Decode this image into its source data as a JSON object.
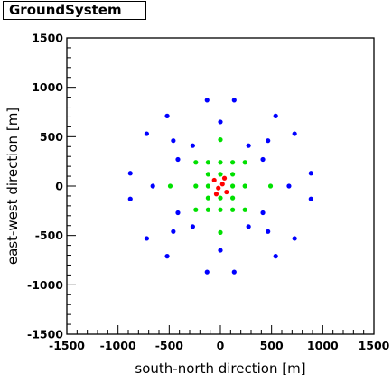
{
  "window": {
    "title": "GroundSystem"
  },
  "chart_data": {
    "type": "scatter",
    "title": "GroundSystem",
    "xlabel": "south-north direction [m]",
    "ylabel": "east-west direction [m]",
    "xlim": [
      -1500,
      1500
    ],
    "ylim": [
      -1500,
      1500
    ],
    "x_ticks": [
      -1500,
      -1000,
      -500,
      0,
      500,
      1000,
      1500
    ],
    "y_ticks": [
      -1500,
      -1000,
      -500,
      0,
      500,
      1000,
      1500
    ],
    "grid": false,
    "series": [
      {
        "color": "#0000ff",
        "points": [
          [
            -130,
            870
          ],
          [
            135,
            870
          ],
          [
            -520,
            710
          ],
          [
            540,
            710
          ],
          [
            -720,
            530
          ],
          [
            725,
            530
          ],
          [
            -460,
            460
          ],
          [
            0,
            650
          ],
          [
            465,
            460
          ],
          [
            -270,
            410
          ],
          [
            275,
            410
          ],
          [
            -415,
            270
          ],
          [
            415,
            270
          ],
          [
            -880,
            130
          ],
          [
            885,
            130
          ],
          [
            -660,
            0
          ],
          [
            670,
            0
          ],
          [
            -880,
            -130
          ],
          [
            885,
            -130
          ],
          [
            -415,
            -270
          ],
          [
            415,
            -270
          ],
          [
            -270,
            -410
          ],
          [
            275,
            -410
          ],
          [
            -460,
            -460
          ],
          [
            0,
            -650
          ],
          [
            465,
            -460
          ],
          [
            -720,
            -530
          ],
          [
            725,
            -530
          ],
          [
            -520,
            -710
          ],
          [
            540,
            -710
          ],
          [
            -130,
            -870
          ],
          [
            135,
            -870
          ]
        ]
      },
      {
        "color": "#00e000",
        "points": [
          [
            0,
            470
          ],
          [
            -240,
            240
          ],
          [
            -120,
            240
          ],
          [
            0,
            240
          ],
          [
            120,
            240
          ],
          [
            240,
            240
          ],
          [
            -120,
            120
          ],
          [
            0,
            120
          ],
          [
            120,
            120
          ],
          [
            -490,
            0
          ],
          [
            -240,
            0
          ],
          [
            -120,
            0
          ],
          [
            120,
            0
          ],
          [
            240,
            0
          ],
          [
            490,
            0
          ],
          [
            -120,
            -120
          ],
          [
            0,
            -120
          ],
          [
            120,
            -120
          ],
          [
            -240,
            -240
          ],
          [
            -120,
            -240
          ],
          [
            0,
            -240
          ],
          [
            120,
            -240
          ],
          [
            240,
            -240
          ],
          [
            0,
            -470
          ]
        ]
      },
      {
        "color": "#ff0000",
        "points": [
          [
            -60,
            60
          ],
          [
            20,
            20
          ],
          [
            -20,
            -20
          ],
          [
            60,
            -60
          ],
          [
            -40,
            -80
          ],
          [
            40,
            80
          ]
        ]
      }
    ]
  }
}
